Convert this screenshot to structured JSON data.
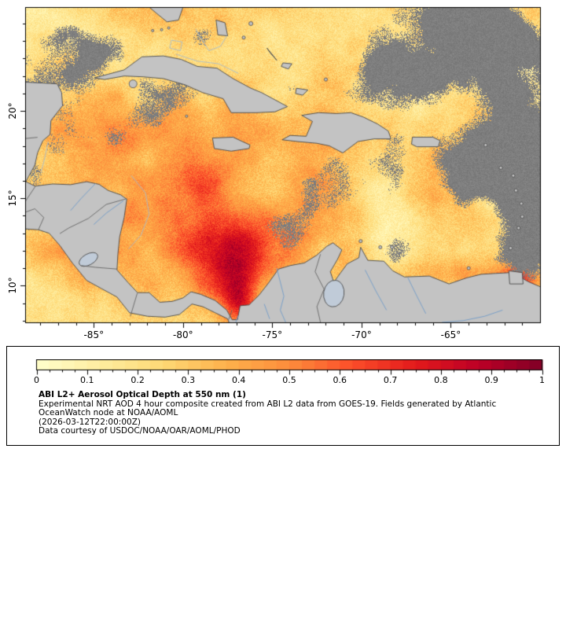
{
  "figure": {
    "x_axis": {
      "tick_labels": [
        "-85°",
        "-80°",
        "-75°",
        "-70°",
        "-65°"
      ],
      "tick_lons": [
        -85,
        -80,
        -75,
        -70,
        -65
      ]
    },
    "y_axis": {
      "tick_labels": [
        "20°",
        "15°",
        "10°"
      ],
      "tick_lats": [
        20,
        15,
        10
      ]
    }
  },
  "legend": {
    "colorbar": {
      "min": 0,
      "max": 1,
      "tick_labels": [
        "0",
        "0.1",
        "0.2",
        "0.3",
        "0.4",
        "0.5",
        "0.6",
        "0.7",
        "0.8",
        "0.9",
        "1"
      ],
      "colormap": "YlOrRd",
      "colormap_stops": [
        "#ffffcc",
        "#ffeda0",
        "#fed976",
        "#feb24c",
        "#fd8d3c",
        "#fc4e2a",
        "#e31a1c",
        "#bd0026",
        "#800026"
      ]
    },
    "title": "ABI L2+ Aerosol Optical Depth at 550 nm (1)",
    "description_lines": [
      "Experimental NRT AOD 4 hour composite created from ABI L2 data from GOES-19. Fields generated by Atlantic",
      "OceanWatch node at NOAA/AOML"
    ],
    "timestamp": "(2026-03-12T22:00:00Z)",
    "courtesy": "Data courtesy of USDOC/NOAA/OAR/AOML/PHOD"
  },
  "map_colors": {
    "land": "#c3c3c3",
    "cloud": "#7d7d7d",
    "coastline": "#4a4a4a",
    "river": "#7aa0c8",
    "bank_line": "#9fb9d4",
    "border": "#5a5a5a",
    "lake": "#c0cbd8",
    "frame": "#000000"
  }
}
